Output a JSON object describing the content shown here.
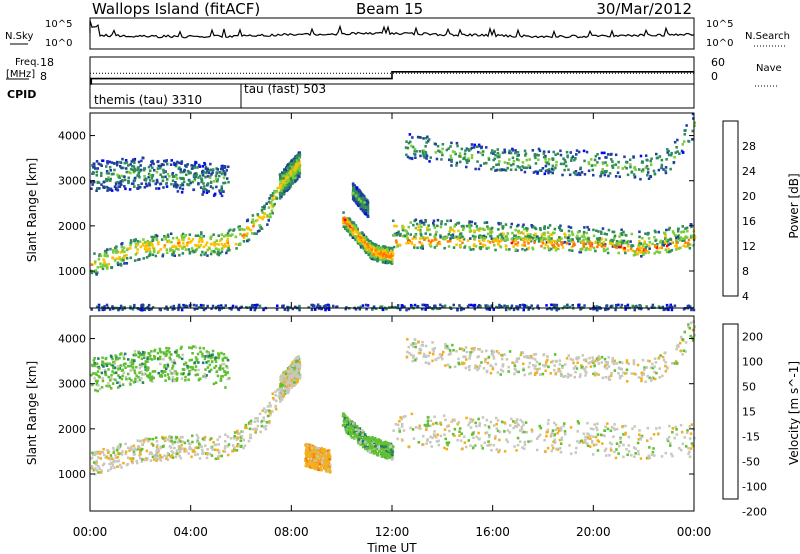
{
  "header": {
    "title": "Wallops Island (fitACF)",
    "beam": "Beam 15",
    "date": "30/Mar/2012"
  },
  "chart_data": [
    {
      "type": "line",
      "panel": "noise",
      "left_label": "N.Sky",
      "right_label": "N.Search",
      "y_ticks": [
        "10^5",
        "10^0"
      ],
      "ylim": [
        1,
        100000
      ],
      "y_scale": "log"
    },
    {
      "type": "line",
      "panel": "frequency",
      "left_label_line1": "Freq.",
      "left_label_line2": "[MHz]",
      "right_label": "Nave",
      "left_ticks": [
        "18",
        "8"
      ],
      "right_ticks": [
        "60",
        "0"
      ],
      "series": [
        {
          "name": "Freq.",
          "x": [
            0,
            0.05,
            0.05,
            12,
            12,
            24
          ],
          "y": [
            8,
            8,
            10,
            10,
            12.5,
            12.5
          ]
        },
        {
          "name": "Nave",
          "x": [
            0,
            24
          ],
          "y": [
            12,
            12
          ]
        }
      ]
    },
    {
      "type": "table",
      "panel": "cpid",
      "left_label": "CPID",
      "segments": [
        {
          "label": "themis (tau) 3310",
          "start": 0,
          "end": 6
        },
        {
          "label": "tau (fast) 503",
          "start": 6,
          "end": 24
        }
      ]
    },
    {
      "type": "heatmap",
      "panel": "power",
      "ylabel": "Slant Range [km]",
      "y_ticks": [
        1000,
        2000,
        3000,
        4000
      ],
      "ylim": [
        180,
        4500
      ],
      "xlim": [
        0,
        24
      ],
      "colorbar_label": "Power [dB]",
      "colorbar_ticks": [
        "28",
        "24",
        "20",
        "16",
        "12",
        "8",
        "4"
      ],
      "colors": [
        "#0000ff",
        "#1f3fa0",
        "#2f8c5a",
        "#7acc3a",
        "#ffc000",
        "#ff7a00",
        "#ff0000"
      ],
      "bands": [
        {
          "x": [
            0,
            2,
            4,
            5,
            6,
            7,
            7.5
          ],
          "y": [
            1150,
            1550,
            1650,
            1600,
            1800,
            2300,
            2900
          ],
          "width": 250,
          "level": 20
        },
        {
          "x": [
            7.5,
            8.2,
            8.3
          ],
          "y": [
            2900,
            3350,
            3400
          ],
          "width": 280,
          "level": 18
        },
        {
          "x": [
            0,
            2,
            4,
            5.5
          ],
          "y": [
            3100,
            3200,
            3100,
            3000
          ],
          "width": 350,
          "level": 10
        },
        {
          "x": [
            10,
            10.6,
            11.2,
            12
          ],
          "y": [
            2200,
            1800,
            1450,
            1350
          ],
          "width": 180,
          "level": 24
        },
        {
          "x": [
            10.4,
            11
          ],
          "y": [
            2800,
            2400
          ],
          "width": 180,
          "level": 12
        },
        {
          "x": [
            12,
            16,
            20,
            22,
            24
          ],
          "y": [
            2000,
            1900,
            1800,
            1700,
            1900
          ],
          "width": 200,
          "level": 16
        },
        {
          "x": [
            12,
            16,
            20,
            22,
            24
          ],
          "y": [
            1700,
            1650,
            1600,
            1500,
            1700
          ],
          "width": 160,
          "level": 24
        },
        {
          "x": [
            12.5,
            16,
            20,
            22,
            23,
            24
          ],
          "y": [
            3800,
            3500,
            3400,
            3300,
            3500,
            4300
          ],
          "width": 280,
          "level": 12
        },
        {
          "x": [
            0,
            6,
            12,
            18,
            24
          ],
          "y": [
            220,
            220,
            220,
            220,
            220
          ],
          "width": 60,
          "level": 8
        }
      ]
    },
    {
      "type": "heatmap",
      "panel": "velocity",
      "ylabel": "Slant Range [km]",
      "xlabel": "Time UT",
      "y_ticks": [
        1000,
        2000,
        3000,
        4000
      ],
      "ylim": [
        180,
        4500
      ],
      "xlim": [
        0,
        24
      ],
      "x_ticks": [
        "00:00",
        "04:00",
        "08:00",
        "12:00",
        "16:00",
        "20:00",
        "00:00"
      ],
      "colorbar_label": "Velocity [m s^-1]",
      "colorbar_ticks": [
        "200",
        "100",
        "50",
        "15",
        "-15",
        "-50",
        "-100",
        "-200"
      ],
      "colors": [
        "#2030c0",
        "#208060",
        "#60c030",
        "#c8c8c0",
        "#f0b020",
        "#ff7000",
        "#ff2000"
      ],
      "bands": [
        {
          "x": [
            0,
            2,
            4,
            5,
            6,
            7,
            7.5
          ],
          "y": [
            1250,
            1550,
            1650,
            1600,
            1800,
            2300,
            2900
          ],
          "width": 260,
          "level": 0
        },
        {
          "x": [
            7.5,
            8.2,
            8.3
          ],
          "y": [
            2900,
            3350,
            3400
          ],
          "width": 280,
          "level": 0
        },
        {
          "x": [
            0,
            2,
            4,
            5.5
          ],
          "y": [
            3200,
            3400,
            3500,
            3300
          ],
          "width": 380,
          "level": 40
        },
        {
          "x": [
            10,
            11,
            12
          ],
          "y": [
            2200,
            1700,
            1500
          ],
          "width": 180,
          "level": 40
        },
        {
          "x": [
            12,
            16,
            20,
            22,
            24
          ],
          "y": [
            2000,
            1900,
            1800,
            1700,
            1800
          ],
          "width": 380,
          "level": 0
        },
        {
          "x": [
            12.5,
            16,
            20,
            22,
            23,
            24
          ],
          "y": [
            3800,
            3500,
            3400,
            3300,
            3500,
            4300
          ],
          "width": 260,
          "level": 0
        },
        {
          "x": [
            8.5,
            9.5
          ],
          "y": [
            1450,
            1300
          ],
          "width": 250,
          "level": -40
        }
      ]
    }
  ]
}
